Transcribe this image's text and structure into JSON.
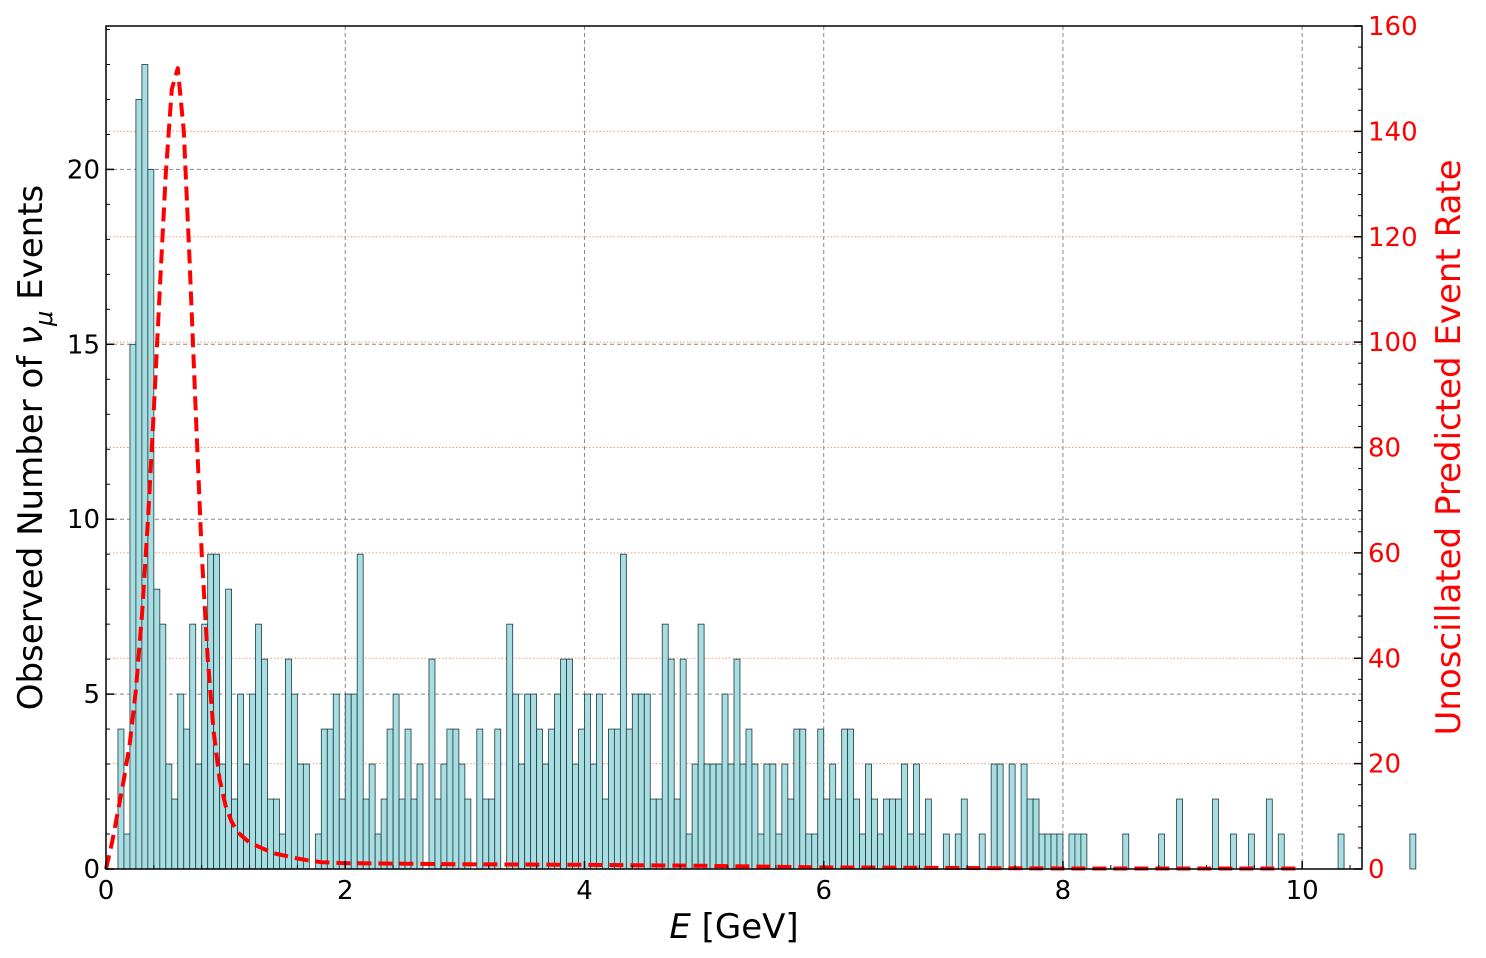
{
  "chart_data": {
    "type": "bar",
    "xlabel_var": "E",
    "xlabel_unit": " [GeV]",
    "ylabel_pre": "Observed Number of ",
    "ylabel_nu": "ν",
    "ylabel_sub": "μ",
    "ylabel_post": " Events",
    "y2label": "Unoscillated Predicted Event Rate",
    "xlim": [
      0,
      10.5
    ],
    "ylim": [
      0,
      24.1
    ],
    "y2lim": [
      0,
      160
    ],
    "xticks": [
      0,
      2,
      4,
      6,
      8,
      10
    ],
    "xtick_labels": [
      "0",
      "2",
      "4",
      "6",
      "8",
      "10"
    ],
    "yticks": [
      0,
      5,
      10,
      15,
      20
    ],
    "ytick_labels": [
      "0",
      "5",
      "10",
      "15",
      "20"
    ],
    "y2ticks": [
      0,
      20,
      40,
      60,
      80,
      100,
      120,
      140,
      160
    ],
    "y2tick_labels": [
      "0",
      "20",
      "40",
      "60",
      "80",
      "100",
      "120",
      "140",
      "160"
    ],
    "grid": true,
    "colors": {
      "bars": "#a8dde1",
      "bar_edge": "#1a3a40",
      "curve": "#ff0000",
      "grid": "#888888",
      "grid2": "#f0a070",
      "y2axis": "#ff0000"
    },
    "bin_width": 0.05,
    "bin_start": 0,
    "observed_counts": [
      0,
      0,
      4,
      1,
      15,
      22,
      23,
      20,
      8,
      7,
      3,
      2,
      5,
      4,
      7,
      3,
      7,
      9,
      9,
      3,
      8,
      2,
      5,
      3,
      5,
      7,
      6,
      2,
      2,
      1,
      6,
      5,
      3,
      3,
      0,
      1,
      4,
      4,
      5,
      2,
      5,
      5,
      9,
      2,
      3,
      1,
      2,
      4,
      5,
      2,
      4,
      2,
      3,
      0,
      6,
      2,
      3,
      4,
      4,
      3,
      2,
      0,
      4,
      2,
      2,
      4,
      0,
      7,
      5,
      3,
      5,
      5,
      4,
      3,
      4,
      5,
      6,
      6,
      3,
      4,
      5,
      3,
      5,
      2,
      4,
      4,
      9,
      4,
      5,
      5,
      5,
      2,
      2,
      7,
      6,
      2,
      6,
      1,
      3,
      7,
      3,
      3,
      3,
      5,
      3,
      6,
      3,
      4,
      3,
      1,
      3,
      3,
      1,
      3,
      2,
      4,
      4,
      1,
      1,
      4,
      2,
      3,
      2,
      4,
      4,
      2,
      1,
      3,
      2,
      1,
      2,
      2,
      2,
      3,
      1,
      3,
      1,
      2,
      0,
      0,
      1,
      0,
      1,
      2,
      0,
      0,
      1,
      0,
      3,
      3,
      0,
      3,
      0,
      3,
      2,
      2,
      1,
      1,
      1,
      1,
      0,
      1,
      1,
      1,
      0,
      0,
      0,
      0,
      0,
      0,
      1,
      0,
      0,
      0,
      0,
      0,
      1,
      0,
      0,
      2,
      0,
      0,
      0,
      0,
      0,
      2,
      0,
      0,
      1,
      0,
      0,
      1,
      0,
      0,
      2,
      0,
      1,
      0,
      0,
      0,
      0,
      0,
      0,
      0,
      0,
      0,
      1,
      0,
      0,
      0,
      0,
      0,
      0,
      0,
      0,
      0,
      0,
      0,
      1
    ],
    "predicted_curve": {
      "x": [
        0,
        0.05,
        0.1,
        0.15,
        0.2,
        0.25,
        0.3,
        0.35,
        0.4,
        0.45,
        0.5,
        0.55,
        0.6,
        0.65,
        0.7,
        0.75,
        0.8,
        0.85,
        0.9,
        0.95,
        1.0,
        1.05,
        1.1,
        1.2,
        1.3,
        1.4,
        1.5,
        1.6,
        1.7,
        1.8,
        2.0,
        2.5,
        3.0,
        4.0,
        5.0,
        6.0,
        7.0,
        8.0,
        9.0,
        10.0
      ],
      "y": [
        0,
        5,
        11,
        17,
        24,
        34,
        48,
        66,
        87,
        110,
        132,
        148,
        152,
        140,
        115,
        87,
        60,
        40,
        26,
        17,
        12,
        9,
        7,
        5,
        4,
        3,
        2.5,
        2,
        1.6,
        1.3,
        1.1,
        1.0,
        0.9,
        0.8,
        0.6,
        0.3,
        0.2,
        0.1,
        0.1,
        0.1
      ]
    }
  }
}
